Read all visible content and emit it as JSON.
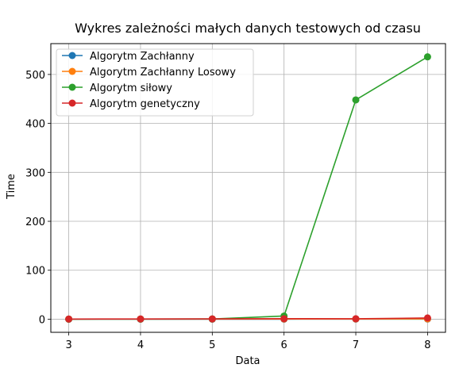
{
  "chart_data": {
    "type": "line",
    "title": "Wykres zależności małych danych testowych od czasu",
    "xlabel": "Data",
    "ylabel": "Time",
    "x": [
      3,
      4,
      5,
      6,
      7,
      8
    ],
    "xlim": [
      2.75,
      8.25
    ],
    "ylim": [
      -26.8,
      563
    ],
    "xticks": [
      3,
      4,
      5,
      6,
      7,
      8
    ],
    "yticks": [
      0,
      100,
      200,
      300,
      400,
      500
    ],
    "grid": true,
    "legend_position": "upper-left",
    "series": [
      {
        "name": "Algorytm Zachłanny",
        "color": "#1f77b4",
        "values": [
          0.1,
          0.1,
          0.1,
          0.1,
          0.2,
          0.3
        ]
      },
      {
        "name": "Algorytm Zachłanny Losowy",
        "color": "#ff7f0e",
        "values": [
          0.2,
          0.2,
          0.3,
          0.4,
          0.5,
          0.6
        ]
      },
      {
        "name": "Algorytm siłowy",
        "color": "#2ca02c",
        "values": [
          0.1,
          0.2,
          0.5,
          6.5,
          448,
          536
        ]
      },
      {
        "name": "Algorytm genetyczny",
        "color": "#d62728",
        "values": [
          0.3,
          0.5,
          0.6,
          1.0,
          0.9,
          2.5
        ]
      }
    ]
  }
}
